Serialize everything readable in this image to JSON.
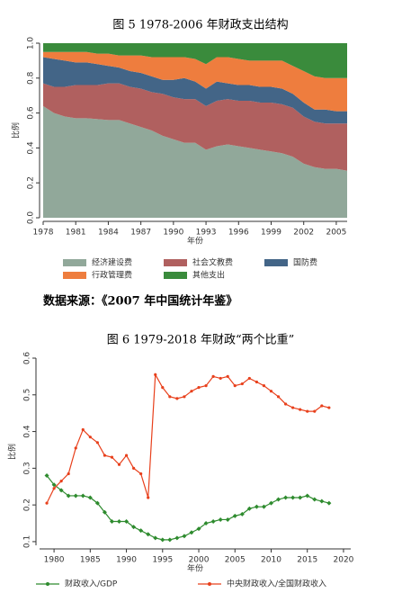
{
  "chart_data": [
    {
      "type": "area",
      "stacked": true,
      "title": "图 5   1978-2006 年财政支出结构",
      "x_label": "年份",
      "y_label": "比例",
      "x": [
        1978,
        1979,
        1980,
        1981,
        1982,
        1983,
        1984,
        1985,
        1986,
        1987,
        1988,
        1989,
        1990,
        1991,
        1992,
        1993,
        1994,
        1995,
        1996,
        1997,
        1998,
        1999,
        2000,
        2001,
        2002,
        2003,
        2004,
        2005,
        2006
      ],
      "xlim": [
        1978,
        2006
      ],
      "xticks": [
        1978,
        1981,
        1984,
        1987,
        1990,
        1993,
        1996,
        1999,
        2002,
        2005
      ],
      "ylim": [
        0,
        1
      ],
      "yticks": [
        {
          "value": 0,
          "label": "0.0"
        },
        0.2,
        0.4,
        0.6,
        0.8,
        {
          "value": 1,
          "label": "1.0"
        }
      ],
      "series": [
        {
          "name": "经济建设费",
          "color": "#91a89a",
          "values": [
            0.64,
            0.6,
            0.58,
            0.57,
            0.57,
            0.565,
            0.56,
            0.56,
            0.54,
            0.52,
            0.5,
            0.47,
            0.45,
            0.43,
            0.43,
            0.39,
            0.41,
            0.42,
            0.41,
            0.4,
            0.39,
            0.38,
            0.37,
            0.35,
            0.31,
            0.29,
            0.28,
            0.28,
            0.27
          ]
        },
        {
          "name": "社会文教费",
          "color": "#b0605f",
          "values": [
            0.13,
            0.15,
            0.17,
            0.19,
            0.19,
            0.195,
            0.21,
            0.21,
            0.21,
            0.22,
            0.22,
            0.24,
            0.24,
            0.25,
            0.25,
            0.25,
            0.26,
            0.26,
            0.26,
            0.27,
            0.27,
            0.28,
            0.28,
            0.28,
            0.27,
            0.26,
            0.26,
            0.26,
            0.27
          ]
        },
        {
          "name": "国防费",
          "color": "#436587",
          "values": [
            0.15,
            0.16,
            0.15,
            0.13,
            0.13,
            0.12,
            0.1,
            0.09,
            0.09,
            0.09,
            0.09,
            0.08,
            0.1,
            0.12,
            0.1,
            0.1,
            0.11,
            0.09,
            0.09,
            0.09,
            0.09,
            0.09,
            0.09,
            0.08,
            0.08,
            0.07,
            0.08,
            0.07,
            0.07
          ]
        },
        {
          "name": "行政管理费",
          "color": "#ee7d3e",
          "values": [
            0.03,
            0.04,
            0.05,
            0.06,
            0.06,
            0.06,
            0.07,
            0.07,
            0.09,
            0.1,
            0.11,
            0.13,
            0.13,
            0.12,
            0.13,
            0.14,
            0.14,
            0.15,
            0.15,
            0.14,
            0.15,
            0.15,
            0.16,
            0.16,
            0.18,
            0.19,
            0.18,
            0.19,
            0.19
          ]
        },
        {
          "name": "其他支出",
          "color": "#3a8b3c",
          "values": [
            0.05,
            0.05,
            0.05,
            0.05,
            0.05,
            0.06,
            0.06,
            0.07,
            0.07,
            0.07,
            0.08,
            0.08,
            0.08,
            0.08,
            0.09,
            0.12,
            0.08,
            0.08,
            0.09,
            0.1,
            0.1,
            0.1,
            0.1,
            0.13,
            0.16,
            0.19,
            0.2,
            0.2,
            0.2
          ]
        }
      ]
    },
    {
      "type": "line",
      "title": "图 6   1979-2018 年财政“两个比重”",
      "x_label": "年份",
      "y_label": "比例",
      "x": [
        1979,
        1980,
        1981,
        1982,
        1983,
        1984,
        1985,
        1986,
        1987,
        1988,
        1989,
        1990,
        1991,
        1992,
        1993,
        1994,
        1995,
        1996,
        1997,
        1998,
        1999,
        2000,
        2001,
        2002,
        2003,
        2004,
        2005,
        2006,
        2007,
        2008,
        2009,
        2010,
        2011,
        2012,
        2013,
        2014,
        2015,
        2016,
        2017,
        2018
      ],
      "xlim": [
        1978,
        2021
      ],
      "xticks": [
        1980,
        1985,
        1990,
        1995,
        2000,
        2005,
        2010,
        2015,
        2020
      ],
      "ylim": [
        0.09,
        0.6
      ],
      "yticks": [
        0.1,
        0.2,
        0.3,
        0.4,
        0.5,
        0.6
      ],
      "series": [
        {
          "name": "财政收入/GDP",
          "color": "#2e8b2e",
          "values": [
            0.28,
            0.255,
            0.24,
            0.225,
            0.225,
            0.225,
            0.22,
            0.205,
            0.18,
            0.155,
            0.155,
            0.155,
            0.14,
            0.13,
            0.12,
            0.11,
            0.105,
            0.105,
            0.11,
            0.115,
            0.125,
            0.135,
            0.15,
            0.155,
            0.16,
            0.16,
            0.17,
            0.175,
            0.19,
            0.195,
            0.195,
            0.205,
            0.215,
            0.22,
            0.22,
            0.22,
            0.225,
            0.215,
            0.21,
            0.205
          ]
        },
        {
          "name": "中央财政收入/全国财政收入",
          "color": "#e8401c",
          "values": [
            0.205,
            0.245,
            0.265,
            0.285,
            0.355,
            0.405,
            0.385,
            0.37,
            0.335,
            0.33,
            0.31,
            0.335,
            0.3,
            0.285,
            0.22,
            0.555,
            0.52,
            0.495,
            0.49,
            0.495,
            0.51,
            0.52,
            0.525,
            0.55,
            0.545,
            0.55,
            0.525,
            0.53,
            0.545,
            0.535,
            0.525,
            0.51,
            0.495,
            0.475,
            0.465,
            0.46,
            0.455,
            0.455,
            0.47,
            0.465
          ]
        }
      ]
    }
  ],
  "source": "数据来源：《2007 年中国统计年鉴》"
}
